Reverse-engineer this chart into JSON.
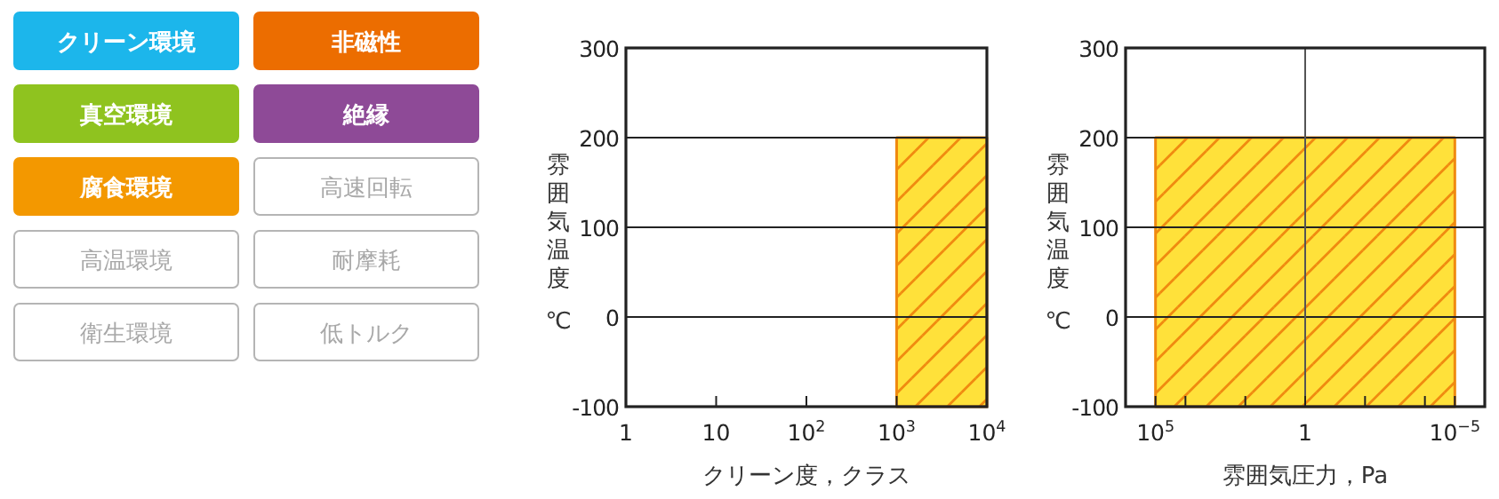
{
  "chart_data": [
    {
      "type": "other",
      "annotations": [
        "クリーン環境",
        "非磁性",
        "真空環境",
        "絶縁",
        "腐食環境",
        "高速回転",
        "高温環境",
        "耐摩耗",
        "衛生環境",
        "低トルク"
      ],
      "colors": [
        "#1cb6eb",
        "#ec6d00",
        "#8fc31f",
        "#8e4a97",
        "#f39800",
        null,
        null,
        null,
        null,
        null
      ]
    },
    {
      "type": "area",
      "xlabel": "クリーン度，クラス",
      "ylabel": "雰囲気温度 ℃",
      "log": "x",
      "x": [
        1000,
        1000,
        10000,
        10000
      ],
      "series": [
        {
          "color": "#ffe13a",
          "values": [
            -100,
            200,
            200,
            -100
          ]
        }
      ],
      "xlim": [
        1,
        10000
      ],
      "xticks": [
        {
          "value": 1,
          "label": "1"
        },
        {
          "value": 10,
          "label": "10"
        },
        {
          "value": 100,
          "label": "10$^{2}$"
        },
        {
          "value": 1000,
          "label": "10$^{3}$"
        },
        {
          "value": 10000,
          "label": "10$^{4}$"
        }
      ],
      "ylim": [
        -100,
        300
      ],
      "yticks": [
        -100,
        0,
        100,
        200,
        300
      ],
      "grid": "y"
    },
    {
      "type": "area",
      "xlabel": "雰囲気圧力，Pa",
      "ylabel": "雰囲気温度 ℃",
      "log": "x",
      "x": [
        100000,
        100000,
        1e-05,
        1e-05
      ],
      "series": [
        {
          "color": "#ffe13a",
          "values": [
            -100,
            200,
            200,
            -100
          ]
        }
      ],
      "xlim": [
        1000000,
        1e-06
      ],
      "xticks": [
        {
          "value": 100000,
          "label": "10$^{5}$"
        },
        {
          "value": 10000,
          "label": null
        },
        {
          "value": 100,
          "label": null
        },
        {
          "value": 1,
          "label": "1"
        },
        {
          "value": 0.01,
          "label": null
        },
        {
          "value": 0.0001,
          "label": null
        },
        {
          "value": 1e-05,
          "label": "10$^{−5}$"
        }
      ],
      "ylim": [
        -100,
        300
      ],
      "yticks": [
        -100,
        0,
        100,
        200,
        300
      ],
      "grid": "y",
      "ref_lines": [
        {
          "axis": "x",
          "value": 1,
          "color": "#555555"
        }
      ]
    }
  ]
}
